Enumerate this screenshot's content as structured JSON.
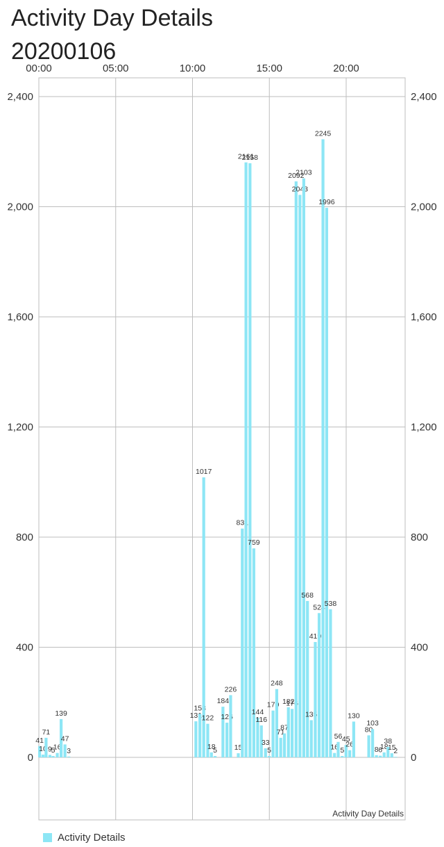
{
  "title": {
    "line1": "Activity Day Details",
    "line2": "20200106"
  },
  "chart_data": {
    "type": "bar",
    "x_tick_labels": [
      "00:00",
      "05:00",
      "10:00",
      "15:00",
      "20:00"
    ],
    "x_ticks_hours": [
      0,
      5,
      10,
      15,
      20
    ],
    "x_unit": "hours",
    "xlim": [
      0,
      24
    ],
    "ylim": [
      -200,
      2500
    ],
    "y_ticks": [
      0,
      400,
      800,
      1200,
      1600,
      2000,
      2400
    ],
    "y_tick_labels": [
      "0",
      "400",
      "800",
      "1,200",
      "1,600",
      "2,000",
      "2,400"
    ],
    "grid": true,
    "color": "#8de6f5",
    "description": "Activity Day Details",
    "legend": {
      "label": "Activity Details",
      "position": "bottom-left"
    },
    "bars": [
      {
        "t": 0.05,
        "value": 41
      },
      {
        "t": 0.27,
        "value": 10
      },
      {
        "t": 0.47,
        "value": 71
      },
      {
        "t": 0.72,
        "value": 9
      },
      {
        "t": 0.93,
        "value": 5
      },
      {
        "t": 1.2,
        "value": 16
      },
      {
        "t": 1.45,
        "value": 139
      },
      {
        "t": 1.7,
        "value": 47
      },
      {
        "t": 1.95,
        "value": 3
      },
      {
        "t": 10.22,
        "value": 131
      },
      {
        "t": 10.48,
        "value": 158
      },
      {
        "t": 10.73,
        "value": 1017
      },
      {
        "t": 10.99,
        "value": 122
      },
      {
        "t": 11.23,
        "value": 18
      },
      {
        "t": 11.47,
        "value": 5
      },
      {
        "t": 11.98,
        "value": 184
      },
      {
        "t": 12.24,
        "value": 126
      },
      {
        "t": 12.48,
        "value": 226
      },
      {
        "t": 12.98,
        "value": 15
      },
      {
        "t": 13.24,
        "value": 831
      },
      {
        "t": 13.48,
        "value": 2161
      },
      {
        "t": 13.74,
        "value": 2158
      },
      {
        "t": 13.99,
        "value": 759
      },
      {
        "t": 14.24,
        "value": 144
      },
      {
        "t": 14.48,
        "value": 116
      },
      {
        "t": 14.75,
        "value": 33
      },
      {
        "t": 14.99,
        "value": 5
      },
      {
        "t": 15.24,
        "value": 170
      },
      {
        "t": 15.48,
        "value": 248
      },
      {
        "t": 15.74,
        "value": 71
      },
      {
        "t": 15.98,
        "value": 87
      },
      {
        "t": 16.24,
        "value": 182
      },
      {
        "t": 16.48,
        "value": 176
      },
      {
        "t": 16.74,
        "value": 2092
      },
      {
        "t": 16.99,
        "value": 2043
      },
      {
        "t": 17.24,
        "value": 2103
      },
      {
        "t": 17.48,
        "value": 568
      },
      {
        "t": 17.73,
        "value": 135
      },
      {
        "t": 17.99,
        "value": 419
      },
      {
        "t": 18.24,
        "value": 524
      },
      {
        "t": 18.49,
        "value": 2245
      },
      {
        "t": 18.73,
        "value": 1996
      },
      {
        "t": 18.98,
        "value": 538
      },
      {
        "t": 19.24,
        "value": 16
      },
      {
        "t": 19.48,
        "value": 56
      },
      {
        "t": 19.74,
        "value": 5
      },
      {
        "t": 19.99,
        "value": 45
      },
      {
        "t": 20.23,
        "value": 26
      },
      {
        "t": 20.49,
        "value": 130
      },
      {
        "t": 21.47,
        "value": 80
      },
      {
        "t": 21.72,
        "value": 103
      },
      {
        "t": 21.97,
        "value": 8
      },
      {
        "t": 22.22,
        "value": 6
      },
      {
        "t": 22.47,
        "value": 18
      },
      {
        "t": 22.72,
        "value": 38
      },
      {
        "t": 22.97,
        "value": 15
      },
      {
        "t": 23.22,
        "value": 2
      }
    ]
  }
}
